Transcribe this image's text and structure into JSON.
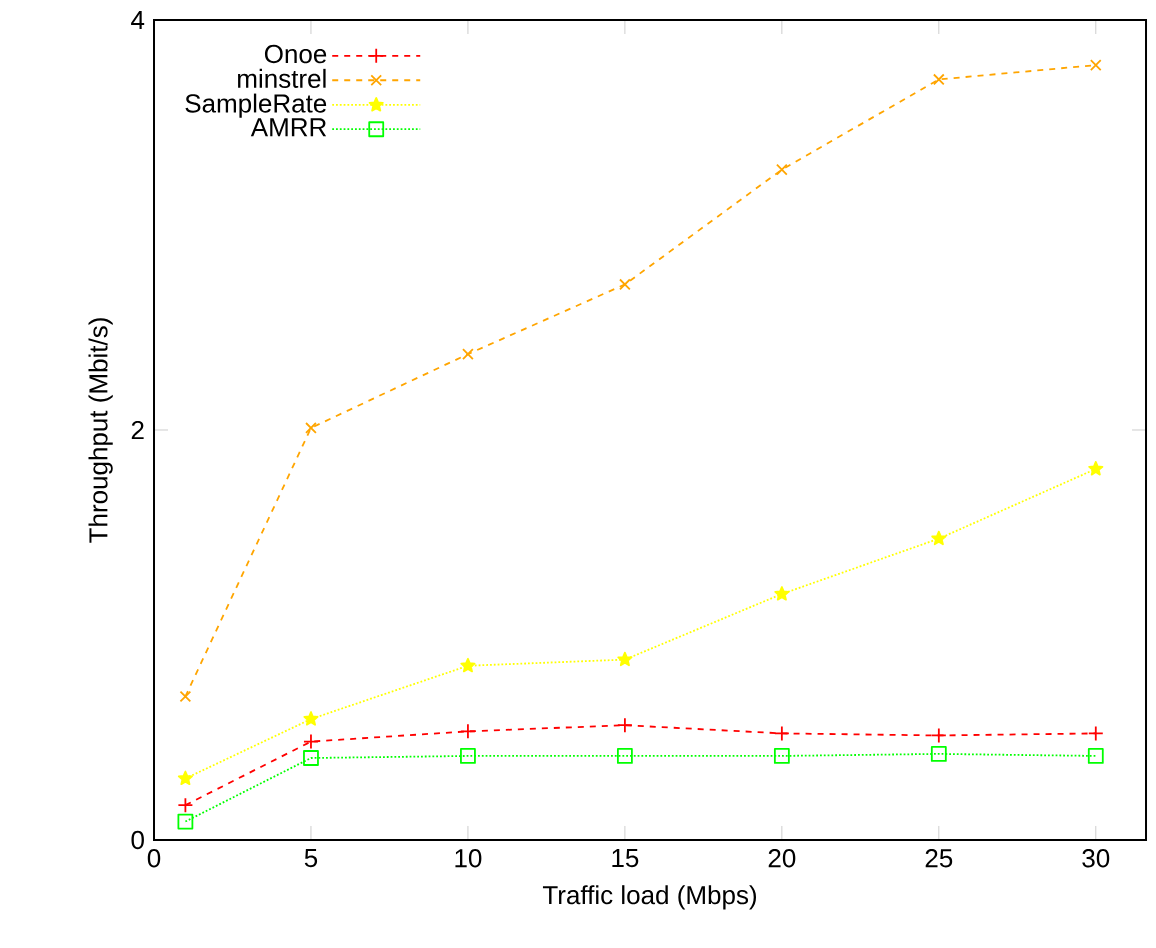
{
  "chart_data": {
    "type": "line",
    "xlabel": "Traffic load (Mbps)",
    "ylabel": "Throughput (Mbit/s)",
    "x": [
      1,
      5,
      10,
      15,
      20,
      25,
      30
    ],
    "xlim": [
      0,
      31.6
    ],
    "xticks": [
      0,
      5,
      10,
      15,
      20,
      25,
      30
    ],
    "ylim": [
      0,
      4
    ],
    "yticks": [
      0,
      2,
      4
    ],
    "legend": "top left",
    "series": [
      {
        "name": "Onoe",
        "color": "#ff0000",
        "marker": "plus",
        "line_style": "dashed",
        "values": [
          0.17,
          0.48,
          0.53,
          0.56,
          0.52,
          0.51,
          0.52
        ]
      },
      {
        "name": "minstrel",
        "color": "#ffa500",
        "marker": "cross",
        "line_style": "dashed",
        "values": [
          0.7,
          2.01,
          2.37,
          2.71,
          3.27,
          3.71,
          3.78
        ]
      },
      {
        "name": "SampleRate",
        "color": "#ffff00",
        "marker": "star",
        "line_style": "dotted",
        "values": [
          0.3,
          0.59,
          0.85,
          0.88,
          1.2,
          1.47,
          1.81
        ]
      },
      {
        "name": "AMRR",
        "color": "#00ff00",
        "marker": "square",
        "line_style": "dotted",
        "values": [
          0.09,
          0.4,
          0.41,
          0.41,
          0.41,
          0.42,
          0.41
        ]
      }
    ]
  }
}
